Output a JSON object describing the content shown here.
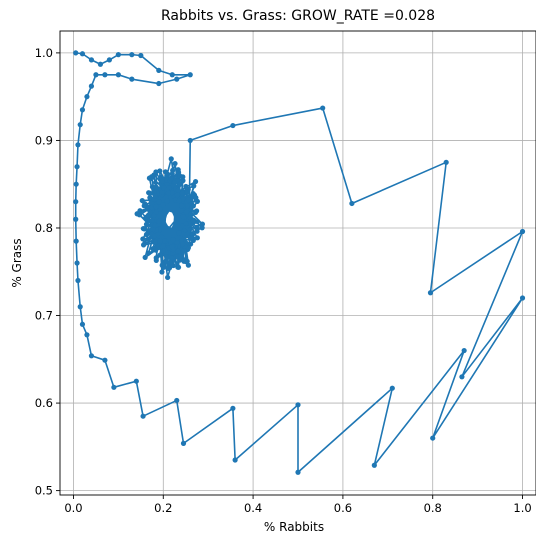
{
  "chart_data": {
    "type": "line",
    "title": "Rabbits vs. Grass: GROW_RATE =0.028",
    "xlabel": "% Rabbits",
    "ylabel": "% Grass",
    "xlim": [
      -0.03,
      1.03
    ],
    "ylim": [
      0.495,
      1.025
    ],
    "xticks": [
      0.0,
      0.2,
      0.4,
      0.6,
      0.8,
      1.0
    ],
    "xtick_labels": [
      "0.0",
      "0.2",
      "0.4",
      "0.6",
      "0.8",
      "1.0"
    ],
    "yticks": [
      0.5,
      0.6,
      0.7,
      0.8,
      0.9,
      1.0
    ],
    "ytick_labels": [
      "0.5",
      "0.6",
      "0.7",
      "0.8",
      "0.9",
      "1.0"
    ],
    "grid": true,
    "legend": null,
    "color": "#1f77b4",
    "marker": "o",
    "series": [
      {
        "x": [
          0.005,
          0.02,
          0.04,
          0.06,
          0.08,
          0.1,
          0.13,
          0.15,
          0.19,
          0.22,
          0.26,
          0.23,
          0.19,
          0.13,
          0.1,
          0.07,
          0.05,
          0.04,
          0.03,
          0.02,
          0.015,
          0.01,
          0.008,
          0.006,
          0.005,
          0.005,
          0.006,
          0.008,
          0.01,
          0.015,
          0.02,
          0.03,
          0.04,
          0.07,
          0.09,
          0.14,
          0.155,
          0.23,
          0.245,
          0.355,
          0.36,
          0.5,
          0.5,
          0.71,
          0.67,
          0.87,
          0.8,
          1.0,
          0.865,
          1.0,
          0.795,
          0.83,
          0.62,
          0.555,
          0.355,
          0.26
        ],
        "y": [
          1.0,
          0.999,
          0.992,
          0.987,
          0.992,
          0.998,
          0.998,
          0.997,
          0.98,
          0.975,
          0.975,
          0.97,
          0.965,
          0.97,
          0.975,
          0.975,
          0.975,
          0.962,
          0.95,
          0.935,
          0.918,
          0.895,
          0.87,
          0.85,
          0.83,
          0.81,
          0.785,
          0.76,
          0.74,
          0.71,
          0.69,
          0.678,
          0.654,
          0.649,
          0.618,
          0.625,
          0.585,
          0.603,
          0.554,
          0.594,
          0.535,
          0.598,
          0.521,
          0.617,
          0.529,
          0.66,
          0.56,
          0.72,
          0.63,
          0.796,
          0.726,
          0.875,
          0.828,
          0.937,
          0.917,
          0.9
        ]
      }
    ],
    "spiral_region": {
      "center": [
        0.215,
        0.81
      ],
      "x_range": [
        0.135,
        0.29
      ],
      "y_range": [
        0.72,
        0.86
      ]
    }
  }
}
